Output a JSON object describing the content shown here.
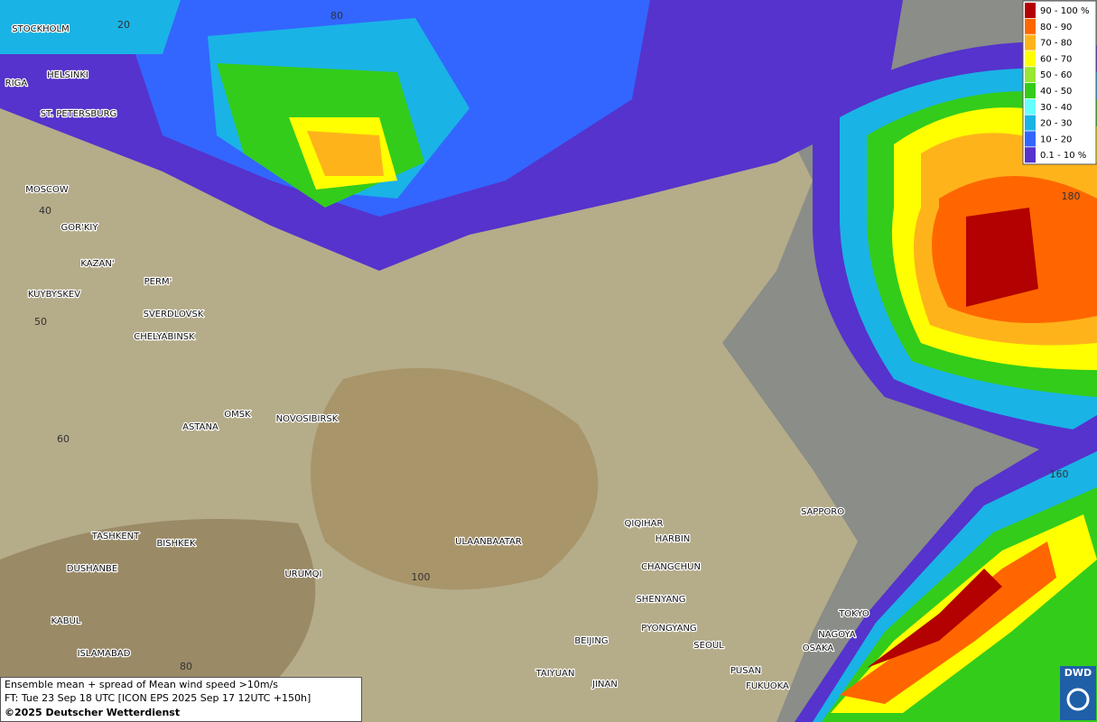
{
  "legend": [
    {
      "label": "90 - 100 %",
      "color": "#b30000"
    },
    {
      "label": "80 - 90",
      "color": "#ff6600"
    },
    {
      "label": "70 - 80",
      "color": "#ffb31a"
    },
    {
      "label": "60 - 70",
      "color": "#ffff00"
    },
    {
      "label": "50 - 60",
      "color": "#99e633"
    },
    {
      "label": "40 - 50",
      "color": "#33cc1a"
    },
    {
      "label": "30 - 40",
      "color": "#66ffff"
    },
    {
      "label": "20 - 30",
      "color": "#1ab3e6"
    },
    {
      "label": "10 - 20",
      "color": "#3366ff"
    },
    {
      "label": "0.1 - 10 %",
      "color": "#5533cc"
    }
  ],
  "cities": [
    "STOCKHOLM",
    "HELSINKI",
    "RIGA",
    "ST. PETERSBURG",
    "MOSCOW",
    "GOR'KIY",
    "KAZAN'",
    "PERM'",
    "KUYBYSKEV",
    "SVERDLOVSK",
    "CHELYABINSK",
    "OMSK",
    "NOVOSIBIRSK",
    "ASTANA",
    "TASHKENT",
    "BISHKEK",
    "DUSHANBE",
    "URUMQI",
    "KABUL",
    "ISLAMABAD",
    "ULAANBAATAR",
    "QIQIHAR",
    "HARBIN",
    "CHANGCHUN",
    "SHENYANG",
    "PYONGYANG",
    "SEOUL",
    "BEIJING",
    "TAIYUAN",
    "JINAN",
    "PUSAN",
    "FUKUOKA",
    "OSAKA",
    "NAGOYA",
    "TOKYO",
    "SAPPORO"
  ],
  "grid_labels": [
    "20",
    "80",
    "40",
    "50",
    "60",
    "100",
    "80",
    "180",
    "160"
  ],
  "info": {
    "line1": "Ensemble mean + spread of Mean wind speed >10m/s",
    "line2": "FT: Tue 23 Sep 18 UTC [ICON EPS 2025 Sep 17 12UTC +150h]",
    "line3": "©2025 Deutscher Wetterdienst"
  },
  "logo": "DWD"
}
